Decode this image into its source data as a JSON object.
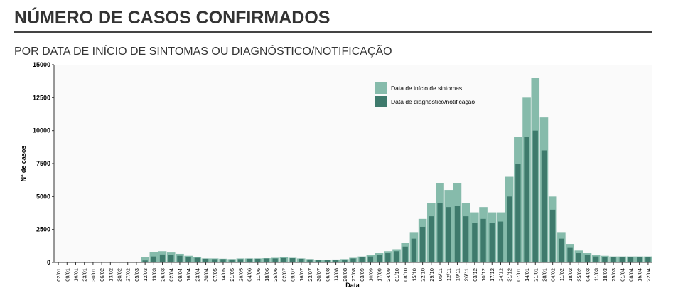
{
  "chart_data": {
    "type": "bar",
    "title": "NÚMERO DE CASOS CONFIRMADOS",
    "subtitle": "POR DATA DE INÍCIO DE SINTOMAS OU DIAGNÓSTICO/NOTIFICAÇÃO",
    "y_label": "Nº de casos",
    "x_label": "Data",
    "categories": [
      "02/01",
      "09/01",
      "16/01",
      "23/01",
      "30/01",
      "06/02",
      "13/02",
      "20/02",
      "27/02",
      "05/03",
      "12/03",
      "19/03",
      "26/03",
      "02/04",
      "09/04",
      "16/04",
      "23/04",
      "30/04",
      "07/05",
      "14/05",
      "21/05",
      "28/05",
      "04/06",
      "11/06",
      "18/06",
      "25/06",
      "02/07",
      "09/07",
      "16/07",
      "23/07",
      "30/07",
      "06/08",
      "13/08",
      "20/08",
      "27/08",
      "03/09",
      "10/09",
      "17/09",
      "24/09",
      "01/10",
      "08/10",
      "15/10",
      "22/10",
      "29/10",
      "05/11",
      "12/11",
      "19/11",
      "26/11",
      "03/12",
      "10/12",
      "17/12",
      "24/12",
      "31/12",
      "07/01",
      "14/01",
      "21/01",
      "28/01",
      "04/02",
      "11/02",
      "18/02",
      "25/02",
      "04/03",
      "11/03",
      "18/03",
      "25/03",
      "01/04",
      "08/04",
      "15/04",
      "22/04"
    ],
    "series": [
      {
        "name": "Data de início de sintomas",
        "color": "#86bbab",
        "values": [
          0,
          0,
          0,
          0,
          0,
          0,
          0,
          0,
          0,
          50,
          400,
          800,
          850,
          750,
          650,
          500,
          400,
          300,
          300,
          280,
          250,
          300,
          300,
          300,
          320,
          350,
          380,
          350,
          300,
          250,
          200,
          200,
          220,
          250,
          350,
          450,
          550,
          700,
          850,
          1000,
          1500,
          2300,
          3300,
          4500,
          6000,
          5500,
          6000,
          4500,
          3800,
          4200,
          3800,
          3800,
          6500,
          9500,
          12500,
          14000,
          11000,
          5000,
          2300,
          1400,
          900,
          700,
          550,
          500,
          450,
          450,
          450,
          450,
          450
        ]
      },
      {
        "name": "Data de diagnóstico/notificação",
        "color": "#3e7a6c",
        "values": [
          0,
          0,
          0,
          0,
          0,
          0,
          0,
          0,
          0,
          0,
          150,
          450,
          600,
          550,
          500,
          400,
          350,
          280,
          250,
          250,
          230,
          250,
          280,
          280,
          300,
          300,
          330,
          320,
          280,
          230,
          200,
          180,
          200,
          220,
          300,
          380,
          450,
          550,
          700,
          850,
          1200,
          1800,
          2700,
          3500,
          4500,
          4200,
          4300,
          3500,
          3000,
          3300,
          3000,
          3100,
          5000,
          7500,
          9500,
          10000,
          8500,
          4000,
          1800,
          1100,
          700,
          550,
          450,
          420,
          380,
          380,
          380,
          380,
          380
        ]
      }
    ],
    "ylim": [
      0,
      15000
    ],
    "yticks": [
      0,
      2500,
      5000,
      7500,
      10000,
      12500,
      15000
    ],
    "grid": false
  }
}
